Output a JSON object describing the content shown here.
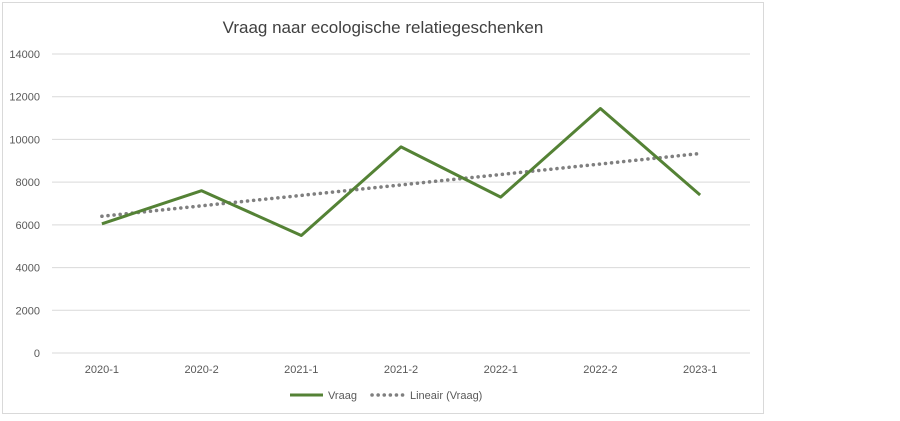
{
  "chart_data": {
    "type": "line",
    "title": "Vraag naar ecologische relatiegeschenken",
    "xlabel": "",
    "ylabel": "",
    "categories": [
      "2020-1",
      "2020-2",
      "2021-1",
      "2021-2",
      "2022-1",
      "2022-2",
      "2023-1"
    ],
    "ylim": [
      0,
      14000
    ],
    "yticks": [
      0,
      2000,
      4000,
      6000,
      8000,
      10000,
      12000,
      14000
    ],
    "grid": true,
    "legend_position": "bottom",
    "series": [
      {
        "name": "Vraag",
        "values": [
          6050,
          7600,
          5500,
          9650,
          7300,
          11450,
          7400
        ],
        "color": "#548235",
        "style": "solid"
      },
      {
        "name": "Lineair (Vraag)",
        "values": [
          6400,
          6890,
          7380,
          7870,
          8360,
          8850,
          9340
        ],
        "color": "#7f7f7f",
        "style": "dotted"
      }
    ]
  }
}
